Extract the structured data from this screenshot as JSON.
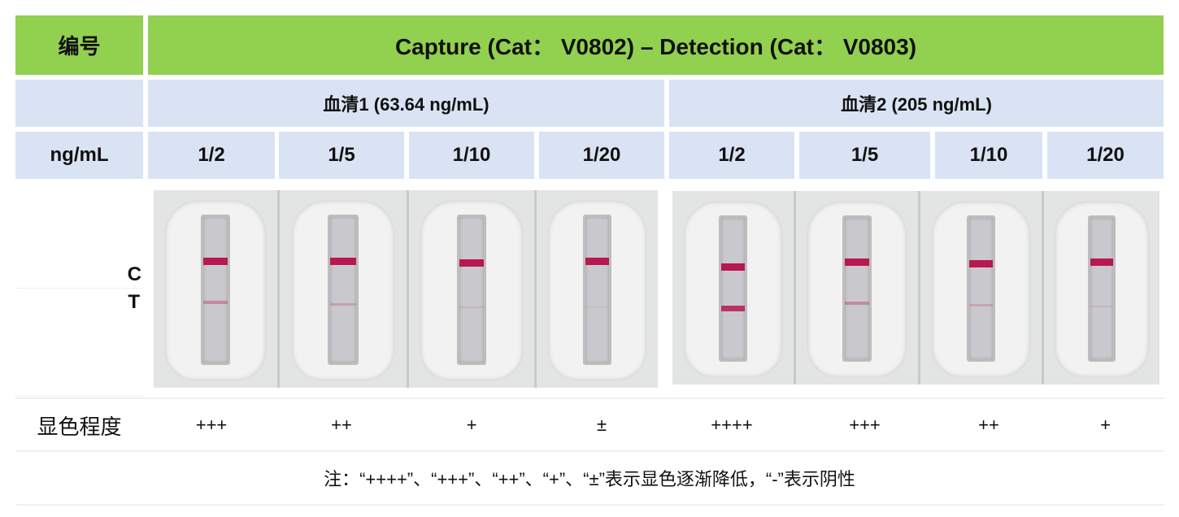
{
  "header": {
    "id_label": "编号",
    "title": "Capture (Cat： V0802) – Detection (Cat： V0803)"
  },
  "groups": [
    {
      "label": "血清1 (63.64 ng/mL)"
    },
    {
      "label": "血清2 (205 ng/mL)"
    }
  ],
  "unit_label": "ng/mL",
  "dilutions": [
    "1/2",
    "1/5",
    "1/10",
    "1/20",
    "1/2",
    "1/5",
    "1/10",
    "1/20"
  ],
  "strip_labels": {
    "c": "C",
    "t": "T"
  },
  "grade_label": "显色程度",
  "grades": [
    "+++",
    "++",
    "+",
    "±",
    "++++",
    "+++",
    "++",
    "+"
  ],
  "note": "注：“++++”、“+++”、“++”、“+”、“±”表示显色逐渐降低，“-”表示阴性",
  "colors": {
    "header_green": "#92d050",
    "row_blue": "#dae3f3",
    "test_line": "#b8174f"
  }
}
